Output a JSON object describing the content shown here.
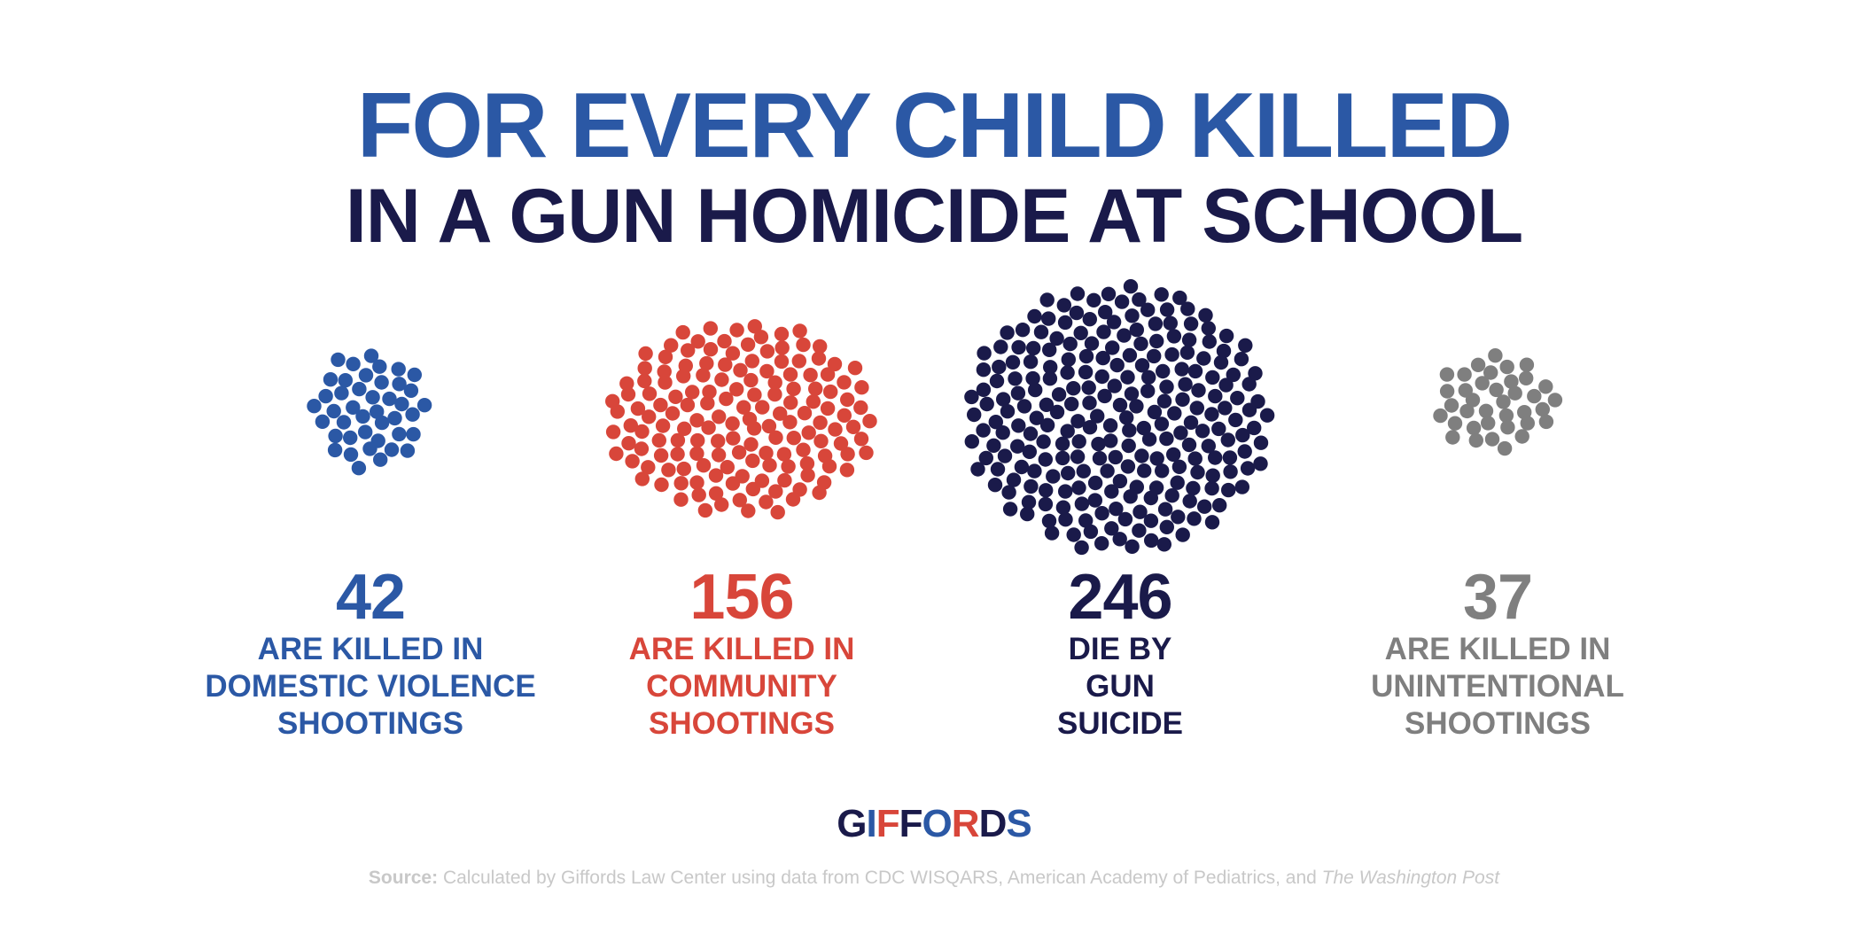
{
  "title": {
    "line1": "FOR EVERY CHILD KILLED",
    "line2": "IN A GUN HOMICIDE AT SCHOOL",
    "line1_color": "#2b58a5",
    "line2_color": "#1a1a4a"
  },
  "chart_data": {
    "type": "dot-cluster",
    "title": "FOR EVERY CHILD KILLED IN A GUN HOMICIDE AT SCHOOL",
    "categories": [
      "ARE KILLED IN DOMESTIC VIOLENCE SHOOTINGS",
      "ARE KILLED IN COMMUNITY SHOOTINGS",
      "DIE BY GUN SUICIDE",
      "ARE KILLED IN UNINTENTIONAL SHOOTINGS"
    ],
    "values": [
      42,
      156,
      246,
      37
    ],
    "colors": [
      "#2b58a5",
      "#d8463a",
      "#1a1a4a",
      "#7f7f7f"
    ]
  },
  "stats": [
    {
      "number": "42",
      "lines": [
        "ARE KILLED IN",
        "DOMESTIC VIOLENCE",
        "SHOOTINGS"
      ],
      "color": "#2b58a5"
    },
    {
      "number": "156",
      "lines": [
        "ARE KILLED IN",
        "COMMUNITY",
        "SHOOTINGS"
      ],
      "color": "#d8463a"
    },
    {
      "number": "246",
      "lines": [
        "DIE BY",
        "GUN",
        "SUICIDE"
      ],
      "color": "#1a1a4a"
    },
    {
      "number": "37",
      "lines": [
        "ARE KILLED IN",
        "UNINTENTIONAL",
        "SHOOTINGS"
      ],
      "color": "#7f7f7f"
    }
  ],
  "logo": {
    "text": "GIFFORDS",
    "colors": [
      "#1a1a4a",
      "#2b58a5",
      "#d8463a"
    ]
  },
  "source": {
    "label": "Source:",
    "text": " Calculated by Giffords Law Center using data from CDC WISQARS, American Academy of Pediatrics, and ",
    "publication": "The Washington Post"
  }
}
